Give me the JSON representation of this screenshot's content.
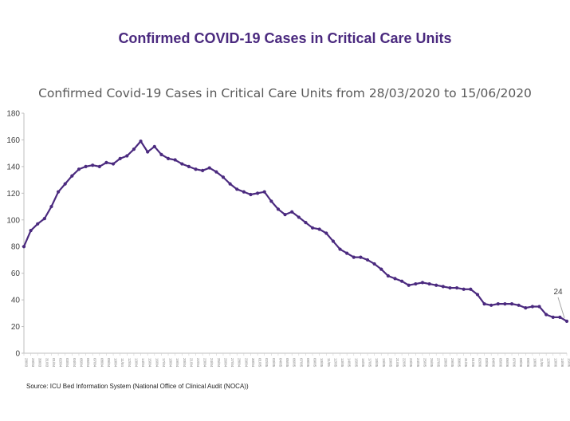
{
  "page": {
    "slide_title": "Confirmed COVID-19 Cases in Critical Care Units",
    "source": "Source: ICU Bed Information System (National Office of Clinical Audit (NOCA))"
  },
  "chart_data": {
    "type": "line",
    "title": "Confirmed Covid-19 Cases in Critical Care Units from 28/03/2020 to 15/06/2020",
    "xlabel": "",
    "ylabel": "",
    "ylim": [
      0,
      180
    ],
    "yticks": [
      0,
      20,
      40,
      60,
      80,
      100,
      120,
      140,
      160,
      180
    ],
    "grid": false,
    "legend": "none",
    "line_color": "#4B2A7F",
    "callout": {
      "index": 79,
      "label": "24"
    },
    "x": [
      "28/03",
      "29/03",
      "30/03",
      "31/03",
      "01/04",
      "02/04",
      "03/04",
      "04/04",
      "05/04",
      "06/04",
      "07/04",
      "08/04",
      "09/04",
      "10/04",
      "11/04",
      "12/04",
      "13/04",
      "14/04",
      "15/04",
      "16/04",
      "17/04",
      "18/04",
      "19/04",
      "20/04",
      "21/04",
      "22/04",
      "23/04",
      "24/04",
      "25/04",
      "26/04",
      "27/04",
      "28/04",
      "29/04",
      "30/04",
      "01/05",
      "02/05",
      "03/05",
      "04/05",
      "05/05",
      "06/05",
      "07/05",
      "08/05",
      "09/05",
      "10/05",
      "11/05",
      "12/05",
      "13/05",
      "14/05",
      "15/05",
      "16/05",
      "17/05",
      "18/05",
      "19/05",
      "20/05",
      "21/05",
      "22/05",
      "23/05",
      "24/05",
      "25/05",
      "26/05",
      "27/05",
      "28/05",
      "29/05",
      "30/05",
      "31/05",
      "01/06",
      "02/06",
      "03/06",
      "04/06",
      "05/06",
      "06/06",
      "07/06",
      "08/06",
      "09/06",
      "10/06",
      "11/06",
      "12/06",
      "13/06",
      "14/06",
      "15/06"
    ],
    "series": [
      {
        "name": "",
        "values": [
          80,
          92,
          97,
          101,
          110,
          121,
          127,
          133,
          138,
          140,
          141,
          140,
          143,
          142,
          146,
          148,
          153,
          159,
          151,
          155,
          149,
          146,
          145,
          142,
          140,
          138,
          137,
          139,
          136,
          132,
          127,
          123,
          121,
          119,
          120,
          121,
          114,
          108,
          104,
          106,
          102,
          98,
          94,
          93,
          90,
          84,
          78,
          75,
          72,
          72,
          70,
          67,
          63,
          58,
          56,
          54,
          51,
          52,
          53,
          52,
          51,
          50,
          49,
          49,
          48,
          48,
          44,
          37,
          36,
          37,
          37,
          37,
          36,
          34,
          35,
          35,
          29,
          27,
          27,
          24
        ]
      }
    ]
  }
}
